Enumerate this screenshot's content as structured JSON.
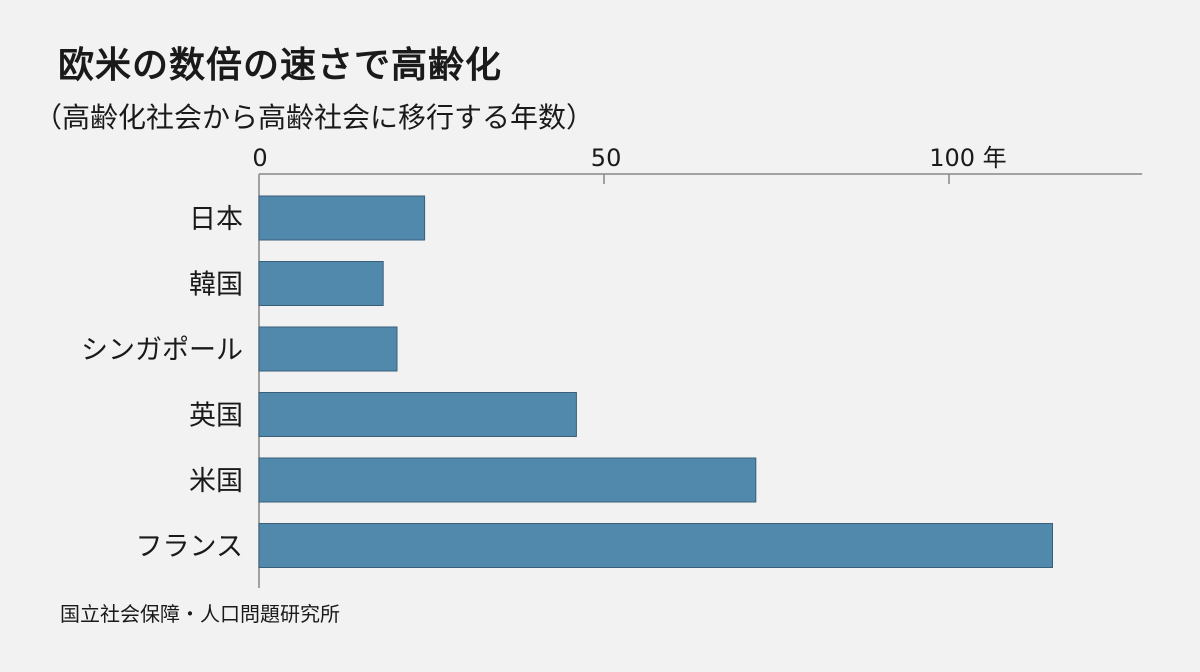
{
  "header": {
    "title": "欧米の数倍の速さで高齢化",
    "subtitle": "（高齢化社会から高齢社会に移行する年数）"
  },
  "footer": {
    "source": "国立社会保障・人口問題研究所"
  },
  "colors": {
    "bar": "#5189ad",
    "bar_stroke": "#3a5f78",
    "axis": "#888888",
    "background": "#f2f2f2"
  },
  "chart_data": {
    "type": "bar",
    "orientation": "horizontal",
    "categories": [
      "日本",
      "韓国",
      "シンガポール",
      "英国",
      "米国",
      "フランス"
    ],
    "values": [
      24,
      18,
      20,
      46,
      72,
      115
    ],
    "xlim": [
      0,
      128
    ],
    "ticks": [
      {
        "value": 0,
        "label": "0"
      },
      {
        "value": 50,
        "label": "50"
      },
      {
        "value": 100,
        "label": "100 年"
      }
    ],
    "tick_position": "top",
    "grid": false,
    "legend": "none"
  }
}
